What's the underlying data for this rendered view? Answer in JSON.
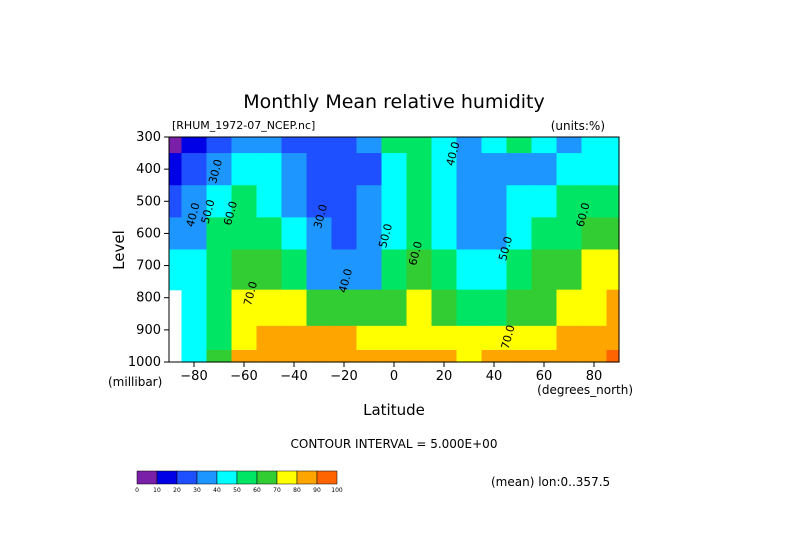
{
  "chart_data": {
    "type": "heatmap",
    "title": "Monthly Mean relative humidity",
    "dataset_label": "[RHUM_1972-07_NCEP.nc]",
    "units_label": "(units:%)",
    "xlabel": "Latitude",
    "x_units": "(degrees_north)",
    "ylabel": "Level",
    "y_units": "(millibar)",
    "xlim": [
      -90,
      90
    ],
    "ylim": [
      1000,
      300
    ],
    "x_ticks": [
      -80,
      -60,
      -40,
      -20,
      0,
      20,
      40,
      60,
      80
    ],
    "y_ticks": [
      300,
      400,
      500,
      600,
      700,
      800,
      900,
      1000
    ],
    "contour_interval_label": "CONTOUR INTERVAL = 5.000E+00",
    "averaging_label": "(mean) lon:0..357.5",
    "colorbar": {
      "ticks": [
        0,
        10,
        20,
        30,
        40,
        50,
        60,
        70,
        80,
        90,
        100
      ],
      "colors": [
        "#7a1fa8",
        "#0000e6",
        "#1e50ff",
        "#1e96ff",
        "#00ffff",
        "#00e664",
        "#32cd32",
        "#ffff00",
        "#ffa500",
        "#ff6400",
        "#ff0000"
      ]
    },
    "contour_labels": [
      {
        "text": "30.0",
        "lat": -70,
        "level": 410
      },
      {
        "text": "40.0",
        "lat": -79,
        "level": 545
      },
      {
        "text": "50.0",
        "lat": -73,
        "level": 535
      },
      {
        "text": "60.0",
        "lat": -64,
        "level": 540
      },
      {
        "text": "70.0",
        "lat": -56,
        "level": 790
      },
      {
        "text": "30.0",
        "lat": -28,
        "level": 550
      },
      {
        "text": "40.0",
        "lat": -18,
        "level": 750
      },
      {
        "text": "50.0",
        "lat": -2,
        "level": 610
      },
      {
        "text": "60.0",
        "lat": 10,
        "level": 665
      },
      {
        "text": "40.0",
        "lat": 25,
        "level": 355
      },
      {
        "text": "50.0",
        "lat": 46,
        "level": 650
      },
      {
        "text": "70.0",
        "lat": 47,
        "level": 925
      },
      {
        "text": "60.0",
        "lat": 77,
        "level": 545
      }
    ],
    "series": [
      {
        "lat": [
          -90,
          -80,
          -70,
          -60,
          -50,
          -40,
          -30,
          -20,
          -10,
          0,
          10,
          20,
          30,
          40,
          50,
          60,
          70,
          80,
          90
        ],
        "level": 1000,
        "values": [
          null,
          48,
          62,
          80,
          84,
          84,
          84,
          84,
          82,
          80,
          80,
          80,
          78,
          80,
          84,
          86,
          86,
          88,
          92
        ]
      },
      {
        "lat": [
          -90,
          -80,
          -70,
          -60,
          -50,
          -40,
          -30,
          -20,
          -10,
          0,
          10,
          20,
          30,
          40,
          50,
          60,
          70,
          80,
          90
        ],
        "level": 925,
        "values": [
          null,
          44,
          58,
          74,
          80,
          80,
          80,
          80,
          78,
          76,
          78,
          74,
          72,
          72,
          74,
          76,
          80,
          82,
          86
        ]
      },
      {
        "lat": [
          -90,
          -80,
          -70,
          -60,
          -50,
          -40,
          -30,
          -20,
          -10,
          0,
          10,
          20,
          30,
          40,
          50,
          60,
          70,
          80,
          90
        ],
        "level": 850,
        "values": [
          null,
          42,
          55,
          72,
          76,
          74,
          68,
          64,
          66,
          68,
          72,
          66,
          58,
          58,
          66,
          68,
          72,
          76,
          80
        ]
      },
      {
        "lat": [
          -90,
          -80,
          -70,
          -60,
          -50,
          -40,
          -30,
          -20,
          -10,
          0,
          10,
          20,
          30,
          40,
          50,
          60,
          70,
          80,
          90
        ],
        "level": 700,
        "values": [
          42,
          40,
          54,
          66,
          62,
          50,
          36,
          32,
          38,
          56,
          64,
          56,
          42,
          44,
          54,
          60,
          66,
          70,
          72
        ]
      },
      {
        "lat": [
          -90,
          -80,
          -70,
          -60,
          -50,
          -40,
          -30,
          -20,
          -10,
          0,
          10,
          20,
          30,
          40,
          50,
          60,
          70,
          80,
          90
        ],
        "level": 600,
        "values": [
          30,
          38,
          54,
          58,
          52,
          42,
          30,
          28,
          32,
          46,
          58,
          46,
          36,
          38,
          46,
          54,
          58,
          60,
          60
        ]
      },
      {
        "lat": [
          -90,
          -80,
          -70,
          -60,
          -50,
          -40,
          -30,
          -20,
          -10,
          0,
          10,
          20,
          30,
          40,
          50,
          60,
          70,
          80,
          90
        ],
        "level": 500,
        "values": [
          22,
          30,
          46,
          54,
          46,
          36,
          28,
          24,
          30,
          40,
          54,
          42,
          32,
          34,
          40,
          46,
          50,
          54,
          56
        ]
      },
      {
        "lat": [
          -90,
          -80,
          -70,
          -60,
          -50,
          -40,
          -30,
          -20,
          -10,
          0,
          10,
          20,
          30,
          40,
          50,
          60,
          70,
          80,
          90
        ],
        "level": 400,
        "values": [
          14,
          22,
          32,
          44,
          40,
          30,
          26,
          20,
          26,
          46,
          52,
          40,
          30,
          32,
          34,
          36,
          40,
          44,
          44
        ]
      },
      {
        "lat": [
          -90,
          -80,
          -70,
          -60,
          -50,
          -40,
          -30,
          -20,
          -10,
          0,
          10,
          20,
          30,
          40,
          50,
          60,
          70,
          80,
          90
        ],
        "level": 300,
        "values": [
          8,
          14,
          22,
          32,
          32,
          28,
          26,
          24,
          30,
          54,
          56,
          44,
          36,
          44,
          50,
          40,
          38,
          40,
          40
        ]
      }
    ]
  }
}
